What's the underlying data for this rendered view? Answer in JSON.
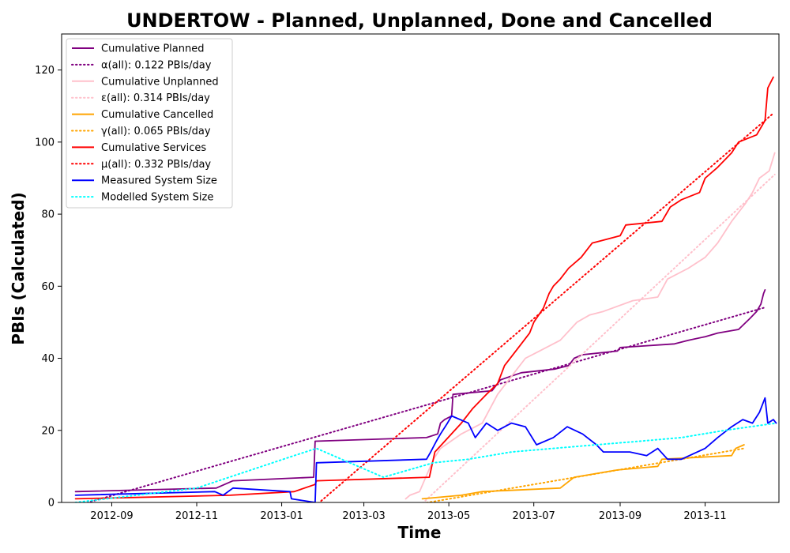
{
  "chart_data": {
    "type": "line",
    "title": "UNDERTOW - Planned, Unplanned, Done  and Cancelled",
    "xlabel": "Time",
    "ylabel": "PBIs (Calculated)",
    "xlim": [
      "2012-07-27",
      "2013-12-24"
    ],
    "ylim": [
      0,
      130
    ],
    "x_ticks": [
      "2012-09",
      "2012-11",
      "2013-01",
      "2013-03",
      "2013-05",
      "2013-07",
      "2013-09",
      "2013-11"
    ],
    "y_ticks": [
      0,
      20,
      40,
      60,
      80,
      100,
      120
    ],
    "grid": false,
    "legend_position": "upper-left",
    "series": [
      {
        "name": "Cumulative Planned",
        "color": "#800080",
        "style": "solid",
        "points": [
          [
            "2012-08-06",
            3
          ],
          [
            "2012-11-15",
            4
          ],
          [
            "2012-11-27",
            6
          ],
          [
            "2013-01-24",
            7
          ],
          [
            "2013-01-25",
            17
          ],
          [
            "2013-04-15",
            18
          ],
          [
            "2013-04-23",
            19
          ],
          [
            "2013-04-25",
            22
          ],
          [
            "2013-04-28",
            23
          ],
          [
            "2013-05-03",
            24
          ],
          [
            "2013-05-04",
            30
          ],
          [
            "2013-06-01",
            31
          ],
          [
            "2013-06-07",
            34
          ],
          [
            "2013-06-22",
            36
          ],
          [
            "2013-07-16",
            37
          ],
          [
            "2013-07-26",
            38
          ],
          [
            "2013-07-30",
            40
          ],
          [
            "2013-08-05",
            41
          ],
          [
            "2013-08-30",
            42
          ],
          [
            "2013-09-01",
            43
          ],
          [
            "2013-10-10",
            44
          ],
          [
            "2013-10-20",
            45
          ],
          [
            "2013-11-01",
            46
          ],
          [
            "2013-11-10",
            47
          ],
          [
            "2013-11-25",
            48
          ],
          [
            "2013-12-03",
            51
          ],
          [
            "2013-12-08",
            53
          ],
          [
            "2013-12-11",
            55
          ],
          [
            "2013-12-13",
            58
          ],
          [
            "2013-12-14",
            59
          ]
        ]
      },
      {
        "name": "α(all): 0.122 PBIs/day",
        "color": "#800080",
        "style": "dotted",
        "points": [
          [
            "2012-08-06",
            -1
          ],
          [
            "2013-12-13",
            54
          ]
        ]
      },
      {
        "name": "Cumulative Unplanned",
        "color": "#ffc0cb",
        "style": "solid",
        "points": [
          [
            "2013-03-31",
            1
          ],
          [
            "2013-04-03",
            2
          ],
          [
            "2013-04-10",
            3
          ],
          [
            "2013-04-20",
            12
          ],
          [
            "2013-04-25",
            15
          ],
          [
            "2013-05-10",
            19
          ],
          [
            "2013-05-25",
            22
          ],
          [
            "2013-06-05",
            30
          ],
          [
            "2013-06-15",
            35
          ],
          [
            "2013-06-25",
            40
          ],
          [
            "2013-07-05",
            42
          ],
          [
            "2013-07-20",
            45
          ],
          [
            "2013-08-01",
            50
          ],
          [
            "2013-08-10",
            52
          ],
          [
            "2013-08-20",
            53
          ],
          [
            "2013-09-10",
            56
          ],
          [
            "2013-09-28",
            57
          ],
          [
            "2013-10-05",
            62
          ],
          [
            "2013-10-20",
            65
          ],
          [
            "2013-11-01",
            68
          ],
          [
            "2013-11-10",
            72
          ],
          [
            "2013-11-20",
            78
          ],
          [
            "2013-11-30",
            83
          ],
          [
            "2013-12-05",
            86
          ],
          [
            "2013-12-10",
            90
          ],
          [
            "2013-12-17",
            92
          ],
          [
            "2013-12-21",
            97
          ]
        ]
      },
      {
        "name": "ε(all): 0.314 PBIs/day",
        "color": "#ffc0cb",
        "style": "dotted",
        "points": [
          [
            "2013-04-10",
            -1
          ],
          [
            "2013-12-21",
            91
          ]
        ]
      },
      {
        "name": "Cumulative Cancelled",
        "color": "#ffa500",
        "style": "solid",
        "points": [
          [
            "2013-04-12",
            1
          ],
          [
            "2013-05-10",
            2
          ],
          [
            "2013-05-25",
            3
          ],
          [
            "2013-07-20",
            4
          ],
          [
            "2013-07-30",
            7
          ],
          [
            "2013-08-30",
            9
          ],
          [
            "2013-09-28",
            10
          ],
          [
            "2013-10-01",
            12
          ],
          [
            "2013-11-20",
            13
          ],
          [
            "2013-11-23",
            15
          ],
          [
            "2013-11-29",
            16
          ]
        ]
      },
      {
        "name": "γ(all): 0.065 PBIs/day",
        "color": "#ffa500",
        "style": "dotted",
        "points": [
          [
            "2013-04-01",
            -1
          ],
          [
            "2013-11-29",
            15
          ]
        ]
      },
      {
        "name": "Cumulative Services",
        "color": "#ff0000",
        "style": "solid",
        "points": [
          [
            "2012-08-06",
            1
          ],
          [
            "2012-11-25",
            2
          ],
          [
            "2013-01-10",
            3
          ],
          [
            "2013-01-25",
            5
          ],
          [
            "2013-01-26",
            6
          ],
          [
            "2013-04-17",
            7
          ],
          [
            "2013-04-21",
            14
          ],
          [
            "2013-05-10",
            22
          ],
          [
            "2013-05-18",
            26
          ],
          [
            "2013-05-28",
            30
          ],
          [
            "2013-06-05",
            33
          ],
          [
            "2013-06-10",
            38
          ],
          [
            "2013-06-20",
            43
          ],
          [
            "2013-06-28",
            47
          ],
          [
            "2013-07-01",
            50
          ],
          [
            "2013-07-08",
            54
          ],
          [
            "2013-07-12",
            58
          ],
          [
            "2013-07-15",
            60
          ],
          [
            "2013-07-20",
            62
          ],
          [
            "2013-07-26",
            65
          ],
          [
            "2013-08-04",
            68
          ],
          [
            "2013-08-12",
            72
          ],
          [
            "2013-09-01",
            74
          ],
          [
            "2013-09-05",
            77
          ],
          [
            "2013-10-01",
            78
          ],
          [
            "2013-10-07",
            82
          ],
          [
            "2013-10-15",
            84
          ],
          [
            "2013-10-28",
            86
          ],
          [
            "2013-11-01",
            90
          ],
          [
            "2013-11-10",
            93
          ],
          [
            "2013-11-20",
            97
          ],
          [
            "2013-11-25",
            100
          ],
          [
            "2013-12-08",
            102
          ],
          [
            "2013-12-14",
            106
          ],
          [
            "2013-12-16",
            115
          ],
          [
            "2013-12-20",
            118
          ]
        ]
      },
      {
        "name": "μ(all): 0.332 PBIs/day",
        "color": "#ff0000",
        "style": "dotted",
        "points": [
          [
            "2013-01-25",
            -1
          ],
          [
            "2013-12-20",
            108
          ]
        ]
      },
      {
        "name": "Measured System Size",
        "color": "#0000ff",
        "style": "solid",
        "points": [
          [
            "2012-08-06",
            2
          ],
          [
            "2012-11-14",
            3
          ],
          [
            "2012-11-20",
            2
          ],
          [
            "2012-11-27",
            4
          ],
          [
            "2013-01-07",
            3
          ],
          [
            "2013-01-08",
            1
          ],
          [
            "2013-01-25",
            0
          ],
          [
            "2013-01-26",
            11
          ],
          [
            "2013-04-15",
            12
          ],
          [
            "2013-04-18",
            14
          ],
          [
            "2013-04-22",
            17
          ],
          [
            "2013-04-25",
            19
          ],
          [
            "2013-04-30",
            22
          ],
          [
            "2013-05-03",
            24
          ],
          [
            "2013-05-15",
            22
          ],
          [
            "2013-05-20",
            18
          ],
          [
            "2013-05-28",
            22
          ],
          [
            "2013-06-05",
            20
          ],
          [
            "2013-06-15",
            22
          ],
          [
            "2013-06-25",
            21
          ],
          [
            "2013-07-03",
            16
          ],
          [
            "2013-07-15",
            18
          ],
          [
            "2013-07-25",
            21
          ],
          [
            "2013-08-05",
            19
          ],
          [
            "2013-08-15",
            16
          ],
          [
            "2013-08-20",
            14
          ],
          [
            "2013-09-08",
            14
          ],
          [
            "2013-09-20",
            13
          ],
          [
            "2013-09-28",
            15
          ],
          [
            "2013-10-05",
            12
          ],
          [
            "2013-10-15",
            12
          ],
          [
            "2013-11-01",
            15
          ],
          [
            "2013-11-10",
            18
          ],
          [
            "2013-11-20",
            21
          ],
          [
            "2013-11-28",
            23
          ],
          [
            "2013-12-05",
            22
          ],
          [
            "2013-12-10",
            25
          ],
          [
            "2013-12-14",
            29
          ],
          [
            "2013-12-16",
            22
          ],
          [
            "2013-12-20",
            23
          ],
          [
            "2013-12-22",
            22
          ]
        ]
      },
      {
        "name": "Modelled System Size",
        "color": "#00ffff",
        "style": "dotted",
        "points": [
          [
            "2012-08-06",
            0
          ],
          [
            "2012-11-01",
            4
          ],
          [
            "2013-01-10",
            13
          ],
          [
            "2013-01-26",
            15
          ],
          [
            "2013-02-25",
            10
          ],
          [
            "2013-03-15",
            7
          ],
          [
            "2013-04-20",
            11
          ],
          [
            "2013-05-15",
            12
          ],
          [
            "2013-06-15",
            14
          ],
          [
            "2013-07-15",
            15
          ],
          [
            "2013-08-15",
            16
          ],
          [
            "2013-09-15",
            17
          ],
          [
            "2013-10-15",
            18
          ],
          [
            "2013-11-15",
            20
          ],
          [
            "2013-12-22",
            22
          ]
        ]
      }
    ]
  }
}
